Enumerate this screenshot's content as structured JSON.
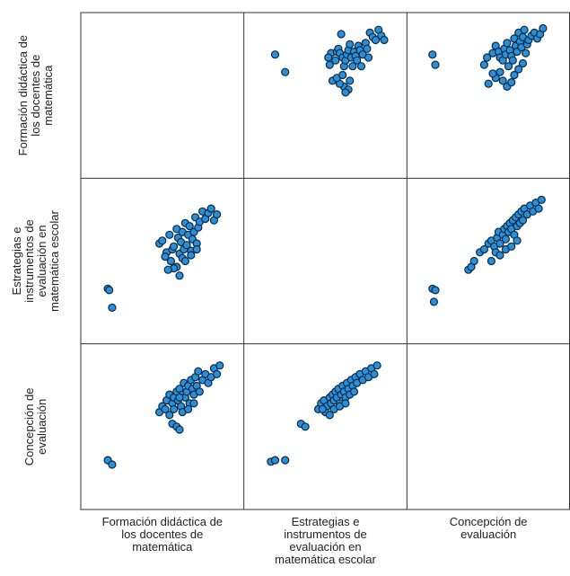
{
  "chart_data": {
    "type": "scatter",
    "matrix": true,
    "variables": [
      {
        "name": "Formación didáctica de los docentes de matemática",
        "label_lines": [
          "Formación didáctica de",
          "los docentes de",
          "matemática"
        ]
      },
      {
        "name": "Estrategias e instrumentos de evaluación en matemática escolar",
        "label_lines_x": [
          "Estrategias e",
          "instrumentos de",
          "evaluación en",
          "matemática escolar"
        ],
        "label_lines_y": [
          "Estrategias e",
          "instrumentos de",
          "evaluación en",
          "matemática escolar"
        ]
      },
      {
        "name": "Concepción de evaluación",
        "label_lines": [
          "Concepción de",
          "evaluación"
        ]
      }
    ],
    "point_color": "#2a8fd8",
    "point_stroke": "#0b2a44",
    "grid": false,
    "panels": [
      {
        "row": 0,
        "col": 1,
        "x_var": 1,
        "y_var": 0,
        "points": [
          [
            0.15,
            0.78
          ],
          [
            0.22,
            0.66
          ],
          [
            0.53,
            0.71
          ],
          [
            0.54,
            0.79
          ],
          [
            0.58,
            0.8
          ],
          [
            0.59,
            0.82
          ],
          [
            0.6,
            0.79
          ],
          [
            0.62,
            0.76
          ],
          [
            0.63,
            0.7
          ],
          [
            0.64,
            0.74
          ],
          [
            0.65,
            0.78
          ],
          [
            0.66,
            0.81
          ],
          [
            0.67,
            0.85
          ],
          [
            0.68,
            0.76
          ],
          [
            0.69,
            0.7
          ],
          [
            0.7,
            0.8
          ],
          [
            0.71,
            0.77
          ],
          [
            0.72,
            0.74
          ],
          [
            0.73,
            0.84
          ],
          [
            0.74,
            0.81
          ],
          [
            0.75,
            0.7
          ],
          [
            0.76,
            0.78
          ],
          [
            0.78,
            0.86
          ],
          [
            0.79,
            0.82
          ],
          [
            0.8,
            0.76
          ],
          [
            0.81,
            0.93
          ],
          [
            0.83,
            0.9
          ],
          [
            0.85,
            0.88
          ],
          [
            0.87,
            0.95
          ],
          [
            0.89,
            0.91
          ],
          [
            0.91,
            0.88
          ],
          [
            0.63,
            0.56
          ],
          [
            0.66,
            0.54
          ],
          [
            0.6,
            0.58
          ],
          [
            0.64,
            0.52
          ],
          [
            0.57,
            0.74
          ],
          [
            0.61,
            0.92
          ],
          [
            0.55,
            0.6
          ],
          [
            0.58,
            0.62
          ],
          [
            0.62,
            0.64
          ],
          [
            0.67,
            0.6
          ],
          [
            0.52,
            0.76
          ]
        ]
      },
      {
        "row": 0,
        "col": 2,
        "x_var": 2,
        "y_var": 0,
        "points": [
          [
            0.11,
            0.78
          ],
          [
            0.13,
            0.71
          ],
          [
            0.47,
            0.71
          ],
          [
            0.49,
            0.76
          ],
          [
            0.53,
            0.79
          ],
          [
            0.55,
            0.84
          ],
          [
            0.57,
            0.8
          ],
          [
            0.58,
            0.76
          ],
          [
            0.6,
            0.74
          ],
          [
            0.61,
            0.82
          ],
          [
            0.62,
            0.78
          ],
          [
            0.63,
            0.86
          ],
          [
            0.64,
            0.7
          ],
          [
            0.65,
            0.81
          ],
          [
            0.66,
            0.77
          ],
          [
            0.67,
            0.74
          ],
          [
            0.68,
            0.89
          ],
          [
            0.69,
            0.84
          ],
          [
            0.7,
            0.8
          ],
          [
            0.71,
            0.93
          ],
          [
            0.72,
            0.87
          ],
          [
            0.73,
            0.83
          ],
          [
            0.74,
            0.9
          ],
          [
            0.75,
            0.95
          ],
          [
            0.76,
            0.79
          ],
          [
            0.77,
            0.85
          ],
          [
            0.78,
            0.88
          ],
          [
            0.8,
            0.91
          ],
          [
            0.82,
            0.93
          ],
          [
            0.84,
            0.89
          ],
          [
            0.86,
            0.92
          ],
          [
            0.88,
            0.96
          ],
          [
            0.6,
            0.6
          ],
          [
            0.63,
            0.56
          ],
          [
            0.66,
            0.59
          ],
          [
            0.58,
            0.66
          ],
          [
            0.55,
            0.62
          ],
          [
            0.53,
            0.65
          ],
          [
            0.68,
            0.64
          ],
          [
            0.71,
            0.68
          ],
          [
            0.74,
            0.72
          ],
          [
            0.5,
            0.58
          ]
        ]
      },
      {
        "row": 1,
        "col": 0,
        "x_var": 0,
        "y_var": 1,
        "points": [
          [
            0.12,
            0.31
          ],
          [
            0.13,
            0.3
          ],
          [
            0.15,
            0.18
          ],
          [
            0.48,
            0.62
          ],
          [
            0.5,
            0.64
          ],
          [
            0.53,
            0.56
          ],
          [
            0.55,
            0.68
          ],
          [
            0.57,
            0.58
          ],
          [
            0.58,
            0.6
          ],
          [
            0.6,
            0.72
          ],
          [
            0.61,
            0.66
          ],
          [
            0.62,
            0.55
          ],
          [
            0.63,
            0.63
          ],
          [
            0.64,
            0.7
          ],
          [
            0.65,
            0.58
          ],
          [
            0.66,
            0.76
          ],
          [
            0.67,
            0.61
          ],
          [
            0.68,
            0.68
          ],
          [
            0.69,
            0.74
          ],
          [
            0.7,
            0.57
          ],
          [
            0.71,
            0.65
          ],
          [
            0.72,
            0.7
          ],
          [
            0.73,
            0.8
          ],
          [
            0.74,
            0.62
          ],
          [
            0.75,
            0.73
          ],
          [
            0.76,
            0.77
          ],
          [
            0.78,
            0.84
          ],
          [
            0.8,
            0.79
          ],
          [
            0.82,
            0.83
          ],
          [
            0.84,
            0.86
          ],
          [
            0.86,
            0.78
          ],
          [
            0.88,
            0.82
          ],
          [
            0.6,
            0.46
          ],
          [
            0.62,
            0.4
          ],
          [
            0.58,
            0.45
          ],
          [
            0.54,
            0.44
          ],
          [
            0.56,
            0.5
          ],
          [
            0.64,
            0.52
          ],
          [
            0.66,
            0.5
          ],
          [
            0.7,
            0.54
          ],
          [
            0.74,
            0.58
          ],
          [
            0.52,
            0.53
          ]
        ]
      },
      {
        "row": 1,
        "col": 2,
        "x_var": 2,
        "y_var": 1,
        "points": [
          [
            0.11,
            0.31
          ],
          [
            0.13,
            0.3
          ],
          [
            0.12,
            0.22
          ],
          [
            0.36,
            0.44
          ],
          [
            0.38,
            0.46
          ],
          [
            0.4,
            0.5
          ],
          [
            0.44,
            0.56
          ],
          [
            0.47,
            0.58
          ],
          [
            0.5,
            0.62
          ],
          [
            0.52,
            0.64
          ],
          [
            0.54,
            0.6
          ],
          [
            0.56,
            0.66
          ],
          [
            0.57,
            0.7
          ],
          [
            0.58,
            0.62
          ],
          [
            0.6,
            0.68
          ],
          [
            0.61,
            0.72
          ],
          [
            0.62,
            0.65
          ],
          [
            0.63,
            0.74
          ],
          [
            0.64,
            0.7
          ],
          [
            0.65,
            0.76
          ],
          [
            0.66,
            0.72
          ],
          [
            0.67,
            0.78
          ],
          [
            0.68,
            0.68
          ],
          [
            0.69,
            0.8
          ],
          [
            0.7,
            0.74
          ],
          [
            0.71,
            0.82
          ],
          [
            0.72,
            0.76
          ],
          [
            0.73,
            0.84
          ],
          [
            0.74,
            0.78
          ],
          [
            0.75,
            0.86
          ],
          [
            0.77,
            0.82
          ],
          [
            0.79,
            0.88
          ],
          [
            0.81,
            0.84
          ],
          [
            0.83,
            0.9
          ],
          [
            0.85,
            0.86
          ],
          [
            0.87,
            0.92
          ],
          [
            0.55,
            0.56
          ],
          [
            0.58,
            0.54
          ],
          [
            0.62,
            0.58
          ],
          [
            0.66,
            0.6
          ],
          [
            0.7,
            0.64
          ],
          [
            0.52,
            0.5
          ]
        ]
      },
      {
        "row": 2,
        "col": 0,
        "x_var": 0,
        "y_var": 2,
        "points": [
          [
            0.12,
            0.27
          ],
          [
            0.15,
            0.24
          ],
          [
            0.48,
            0.6
          ],
          [
            0.5,
            0.64
          ],
          [
            0.53,
            0.68
          ],
          [
            0.55,
            0.72
          ],
          [
            0.57,
            0.66
          ],
          [
            0.58,
            0.7
          ],
          [
            0.6,
            0.74
          ],
          [
            0.61,
            0.68
          ],
          [
            0.62,
            0.76
          ],
          [
            0.63,
            0.64
          ],
          [
            0.64,
            0.72
          ],
          [
            0.65,
            0.8
          ],
          [
            0.66,
            0.7
          ],
          [
            0.67,
            0.74
          ],
          [
            0.68,
            0.78
          ],
          [
            0.69,
            0.66
          ],
          [
            0.7,
            0.82
          ],
          [
            0.71,
            0.76
          ],
          [
            0.72,
            0.72
          ],
          [
            0.73,
            0.84
          ],
          [
            0.74,
            0.78
          ],
          [
            0.75,
            0.88
          ],
          [
            0.76,
            0.74
          ],
          [
            0.78,
            0.82
          ],
          [
            0.8,
            0.86
          ],
          [
            0.82,
            0.8
          ],
          [
            0.84,
            0.84
          ],
          [
            0.86,
            0.9
          ],
          [
            0.88,
            0.86
          ],
          [
            0.9,
            0.92
          ],
          [
            0.57,
            0.52
          ],
          [
            0.6,
            0.5
          ],
          [
            0.62,
            0.48
          ],
          [
            0.55,
            0.58
          ],
          [
            0.58,
            0.62
          ],
          [
            0.64,
            0.6
          ],
          [
            0.68,
            0.62
          ],
          [
            0.72,
            0.66
          ],
          [
            0.52,
            0.62
          ],
          [
            0.62,
            0.7
          ]
        ]
      },
      {
        "row": 2,
        "col": 1,
        "x_var": 1,
        "y_var": 2,
        "points": [
          [
            0.12,
            0.26
          ],
          [
            0.15,
            0.27
          ],
          [
            0.22,
            0.27
          ],
          [
            0.33,
            0.52
          ],
          [
            0.36,
            0.5
          ],
          [
            0.45,
            0.62
          ],
          [
            0.47,
            0.66
          ],
          [
            0.49,
            0.68
          ],
          [
            0.51,
            0.64
          ],
          [
            0.53,
            0.7
          ],
          [
            0.54,
            0.66
          ],
          [
            0.55,
            0.72
          ],
          [
            0.56,
            0.68
          ],
          [
            0.57,
            0.74
          ],
          [
            0.58,
            0.7
          ],
          [
            0.59,
            0.76
          ],
          [
            0.6,
            0.66
          ],
          [
            0.61,
            0.72
          ],
          [
            0.62,
            0.78
          ],
          [
            0.63,
            0.74
          ],
          [
            0.64,
            0.7
          ],
          [
            0.65,
            0.8
          ],
          [
            0.66,
            0.76
          ],
          [
            0.67,
            0.72
          ],
          [
            0.68,
            0.82
          ],
          [
            0.69,
            0.78
          ],
          [
            0.7,
            0.74
          ],
          [
            0.71,
            0.84
          ],
          [
            0.72,
            0.8
          ],
          [
            0.74,
            0.86
          ],
          [
            0.76,
            0.82
          ],
          [
            0.78,
            0.88
          ],
          [
            0.8,
            0.84
          ],
          [
            0.82,
            0.9
          ],
          [
            0.84,
            0.86
          ],
          [
            0.86,
            0.92
          ],
          [
            0.5,
            0.6
          ],
          [
            0.53,
            0.58
          ],
          [
            0.56,
            0.62
          ],
          [
            0.6,
            0.64
          ],
          [
            0.64,
            0.66
          ],
          [
            0.48,
            0.62
          ]
        ]
      }
    ]
  }
}
